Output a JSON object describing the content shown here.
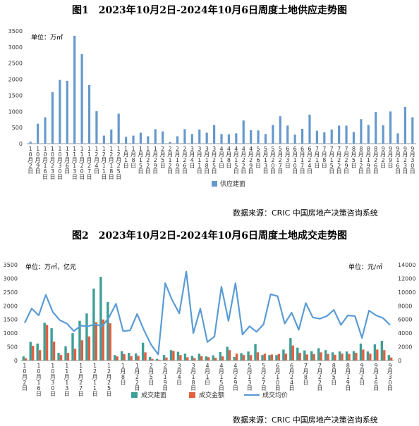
{
  "chart_data": [
    {
      "type": "bar",
      "title": "图1　2023年10月2日-2024年10月6日周度土地供应走势图",
      "unit_label": "单位：万㎡",
      "yticks": [
        0,
        500,
        1000,
        1500,
        2000,
        2500,
        3000,
        3500
      ],
      "ylim": [
        0,
        3500
      ],
      "grid": false,
      "legend_position": "bottom",
      "categories": [
        "10月2日",
        "10月9日",
        "10月16日",
        "10月23日",
        "10月30日",
        "11月6日",
        "11月13日",
        "11月20日",
        "11月27日",
        "12月4日",
        "12月11日",
        "12月18日",
        "12月25日",
        "1月1日",
        "1月8日",
        "1月15日",
        "1月22日",
        "1月29日",
        "2月5日",
        "2月12日",
        "2月19日",
        "2月26日",
        "3月4日",
        "3月11日",
        "3月18日",
        "3月25日",
        "4月1日",
        "4月8日",
        "4月15日",
        "4月22日",
        "4月29日",
        "5月6日",
        "5月13日",
        "5月20日",
        "5月27日",
        "6月3日",
        "6月10日",
        "6月17日",
        "6月24日",
        "7月1日",
        "7月8日",
        "7月15日",
        "7月22日",
        "7月29日",
        "8月5日",
        "8月12日",
        "8月19日",
        "8月26日",
        "9月2日",
        "9月9日",
        "9月16日",
        "9月23日",
        "9月30日"
      ],
      "series": [
        {
          "name": "供应建面",
          "color": "#6699cc",
          "values": [
            60,
            620,
            820,
            1600,
            1980,
            1950,
            3350,
            2780,
            1820,
            1010,
            250,
            440,
            930,
            210,
            250,
            340,
            230,
            450,
            380,
            50,
            230,
            450,
            300,
            440,
            340,
            580,
            300,
            290,
            320,
            720,
            420,
            410,
            300,
            580,
            850,
            560,
            280,
            460,
            900,
            400,
            350,
            440,
            560,
            560,
            360,
            760,
            580,
            980,
            570,
            1000,
            320,
            1140,
            820
          ]
        }
      ],
      "source": "数据来源：CRIC 中国房地产决策咨询系统"
    },
    {
      "type": "bar",
      "title": "图2　2023年10月2日-2024年10月6日周度土地成交走势图",
      "unit_label_left": "单位：万㎡，亿元",
      "unit_label_right": "单位：元/㎡",
      "yticks_left": [
        0,
        500,
        1000,
        1500,
        2000,
        2500,
        3000,
        3500
      ],
      "ylim_left": [
        0,
        3500
      ],
      "yticks_right": [
        0,
        2000,
        4000,
        6000,
        8000,
        10000,
        12000,
        14000
      ],
      "ylim_right": [
        0,
        14000
      ],
      "grid": false,
      "legend_position": "bottom",
      "categories": [
        "10月2日",
        "10月9日",
        "10月16日",
        "10月23日",
        "10月30日",
        "11月6日",
        "11月13日",
        "11月20日",
        "11月27日",
        "12月4日",
        "12月11日",
        "12月18日",
        "12月25日",
        "1月1日",
        "1月8日",
        "1月15日",
        "1月22日",
        "1月29日",
        "2月5日",
        "2月12日",
        "2月19日",
        "2月26日",
        "3月4日",
        "3月11日",
        "3月18日",
        "3月25日",
        "4月1日",
        "4月8日",
        "4月15日",
        "4月22日",
        "4月29日",
        "5月6日",
        "5月13日",
        "5月20日",
        "5月27日",
        "6月3日",
        "6月10日",
        "6月17日",
        "6月24日",
        "7月1日",
        "7月8日",
        "7月15日",
        "7月22日",
        "7月29日",
        "8月5日",
        "8月12日",
        "8月19日",
        "8月26日",
        "9月2日",
        "9月9日",
        "9月16日",
        "9月23日",
        "9月30日"
      ],
      "x_tick_labels": [
        "10月2日",
        "10月16日",
        "10月30日",
        "11月13日",
        "11月27日",
        "12月11日",
        "12月25日",
        "1月8日",
        "1月22日",
        "2月5日",
        "2月19日",
        "3月4日",
        "3月18日",
        "4月1日",
        "4月15日",
        "4月29日",
        "5月13日",
        "5月27日",
        "6月10日",
        "6月24日",
        "7月8日",
        "7月22日",
        "8月5日",
        "8月19日",
        "9月2日",
        "9月16日",
        "9月30日"
      ],
      "series": [
        {
          "name": "成交建面",
          "color": "#3f9e96",
          "axis": "left",
          "values": [
            150,
            680,
            620,
            1380,
            1180,
            280,
            520,
            1000,
            1450,
            1720,
            2630,
            3060,
            2140,
            200,
            340,
            280,
            260,
            650,
            130,
            60,
            200,
            380,
            320,
            250,
            170,
            250,
            150,
            190,
            310,
            500,
            130,
            270,
            330,
            600,
            200,
            200,
            200,
            400,
            820,
            470,
            370,
            340,
            450,
            380,
            300,
            330,
            330,
            340,
            620,
            330,
            590,
            720,
            200
          ]
        },
        {
          "name": "成交金额",
          "color": "#e06040",
          "axis": "left",
          "values": [
            80,
            540,
            380,
            1300,
            690,
            200,
            280,
            430,
            740,
            880,
            1400,
            1500,
            1360,
            150,
            230,
            160,
            170,
            300,
            60,
            30,
            110,
            350,
            200,
            120,
            90,
            160,
            120,
            100,
            150,
            380,
            250,
            200,
            200,
            300,
            250,
            220,
            240,
            250,
            550,
            280,
            220,
            230,
            300,
            240,
            210,
            250,
            240,
            280,
            400,
            250,
            400,
            380,
            110
          ]
        },
        {
          "name": "成交均价",
          "color": "#5b9bd5",
          "axis": "right",
          "type": "line",
          "values": [
            5500,
            7600,
            6600,
            9600,
            7100,
            5900,
            5400,
            4300,
            5100,
            5000,
            5300,
            5000,
            6300,
            8300,
            4300,
            4400,
            6800,
            4400,
            2300,
            900,
            11300,
            8800,
            6900,
            13000,
            4000,
            7600,
            2700,
            3500,
            10800,
            5800,
            11300,
            3800,
            5000,
            4200,
            5300,
            9700,
            9400,
            5400,
            7000,
            4500,
            8400,
            6300,
            6100,
            6500,
            7400,
            5200,
            6600,
            6500,
            3300,
            7300,
            6600,
            6200,
            5200
          ]
        }
      ],
      "source": "数据来源：CRIC 中国房地产决策咨询系统"
    }
  ]
}
